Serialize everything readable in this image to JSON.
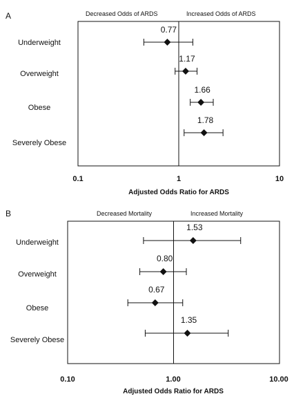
{
  "chart_data": [
    {
      "type": "scatter",
      "panel": "A",
      "side_labels": {
        "left": "Decreased Odds of ARDS",
        "right": "Increased Odds of ARDS"
      },
      "categories": [
        "Underweight",
        "Overweight",
        "Obese",
        "Severely Obese"
      ],
      "values": [
        0.77,
        1.17,
        1.66,
        1.78
      ],
      "value_labels": [
        "0.77",
        "1.17",
        "1.66",
        "1.78"
      ],
      "ci_lower": [
        0.45,
        0.92,
        1.3,
        1.13
      ],
      "ci_upper": [
        1.38,
        1.52,
        2.2,
        2.75
      ],
      "xscale": "log",
      "xlim": [
        0.1,
        10
      ],
      "reference_x": 1,
      "xticks": [
        0.1,
        1,
        10
      ],
      "xtick_labels": [
        "0.1",
        "1",
        "10"
      ],
      "xlabel": "Adjusted Odds Ratio for ARDS"
    },
    {
      "type": "scatter",
      "panel": "B",
      "side_labels": {
        "left": "Decreased Mortality",
        "right": "Increased Mortality"
      },
      "categories": [
        "Underweight",
        "Overweight",
        "Obese",
        "Severely Obese"
      ],
      "values": [
        1.53,
        0.8,
        0.67,
        1.35
      ],
      "value_labels": [
        "1.53",
        "0.80",
        "0.67",
        "1.35"
      ],
      "ci_lower": [
        0.52,
        0.48,
        0.37,
        0.54
      ],
      "ci_upper": [
        4.3,
        1.32,
        1.22,
        3.28
      ],
      "xscale": "log",
      "xlim": [
        0.1,
        10
      ],
      "reference_x": 1,
      "xticks": [
        0.1,
        1,
        10
      ],
      "xtick_labels": [
        "0.10",
        "1.00",
        "10.00"
      ],
      "xlabel": "Adjusted Odds Ratio for ARDS"
    }
  ]
}
